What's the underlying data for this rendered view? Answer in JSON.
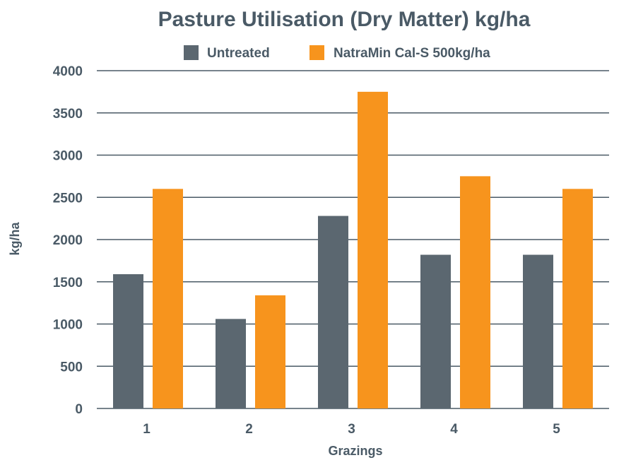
{
  "chart_data": {
    "type": "bar",
    "title": "Pasture Utilisation (Dry Matter) kg/ha",
    "xlabel": "Grazings",
    "ylabel": "kg/ha",
    "categories": [
      "1",
      "2",
      "3",
      "4",
      "5"
    ],
    "series": [
      {
        "name": "Untreated",
        "color": "#5b6770",
        "values": [
          1590,
          1060,
          2280,
          1820,
          1820
        ]
      },
      {
        "name": "NatraMin Cal-S 500kg/ha",
        "color": "#f7941d",
        "values": [
          2600,
          1340,
          3750,
          2750,
          2600
        ]
      }
    ],
    "ylim": [
      0,
      4000
    ],
    "yticks": [
      0,
      500,
      1000,
      1500,
      2000,
      2500,
      3000,
      3500,
      4000
    ],
    "grid": true,
    "legend_position": "top-center",
    "text_color": "#4a5a66",
    "grid_color": "#4a5a66"
  }
}
